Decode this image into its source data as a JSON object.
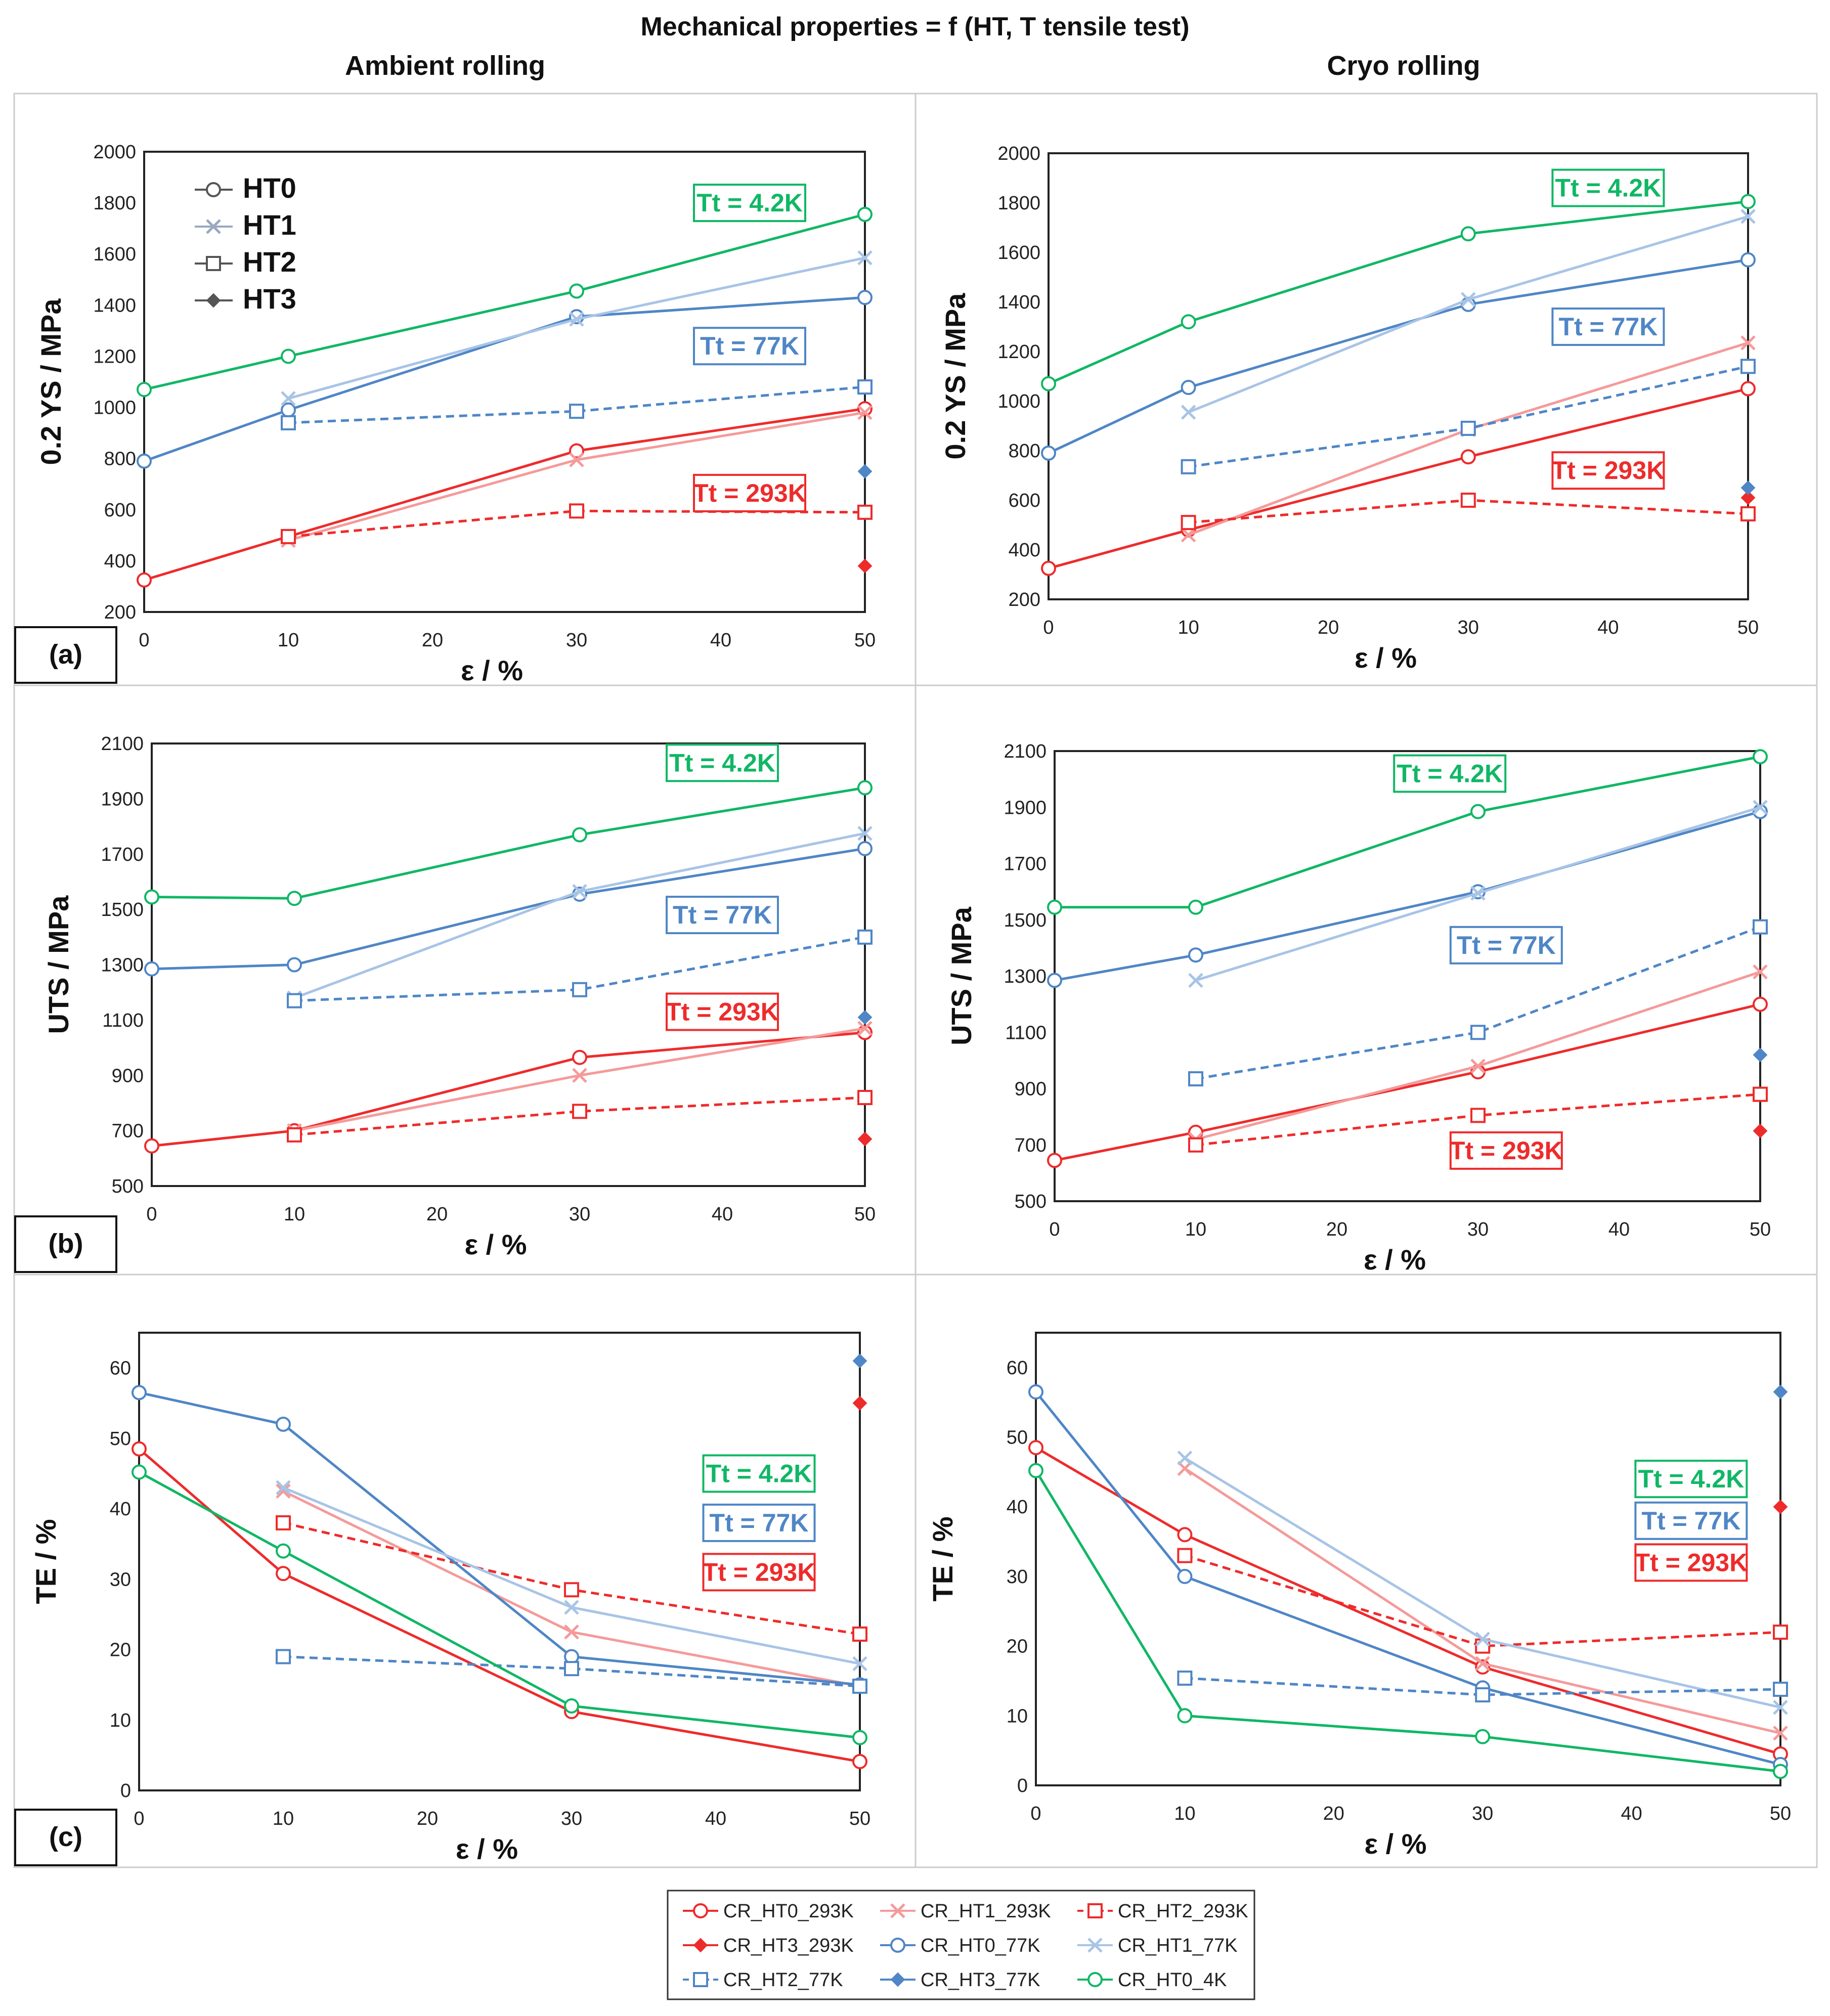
{
  "figure": {
    "title": "Mechanical properties = f (HT, T tensile test)",
    "col_titles": [
      "Ambient rolling",
      "Cryo rolling"
    ],
    "row_labels": [
      "(a)",
      "(b)",
      "(c)"
    ]
  },
  "colors": {
    "red": "#ee2b2b",
    "lightred": "#f59a9a",
    "blue": "#4f86c6",
    "lightblue": "#a8c4e6",
    "green": "#10b765"
  },
  "inset_legend": [
    "HT0",
    "HT1",
    "HT2",
    "HT3"
  ],
  "legend": [
    {
      "name": "CR_HT0_293K",
      "color": "red",
      "dash": false,
      "marker": "circle"
    },
    {
      "name": "CR_HT1_293K",
      "color": "lightred",
      "dash": false,
      "marker": "x"
    },
    {
      "name": "CR_HT2_293K",
      "color": "red",
      "dash": true,
      "marker": "square"
    },
    {
      "name": "CR_HT3_293K",
      "color": "red",
      "dash": false,
      "marker": "diamond"
    },
    {
      "name": "CR_HT0_77K",
      "color": "blue",
      "dash": false,
      "marker": "circle"
    },
    {
      "name": "CR_HT1_77K",
      "color": "lightblue",
      "dash": false,
      "marker": "x"
    },
    {
      "name": "CR_HT2_77K",
      "color": "blue",
      "dash": true,
      "marker": "square"
    },
    {
      "name": "CR_HT3_77K",
      "color": "blue",
      "dash": false,
      "marker": "diamond"
    },
    {
      "name": "CR_HT0_4K",
      "color": "green",
      "dash": false,
      "marker": "circle"
    }
  ],
  "chart_data": [
    {
      "type": "line",
      "panel": "(a) Ambient rolling",
      "xlabel": "ε / %",
      "ylabel": "0.2 YS / MPa",
      "xlim": [
        0,
        50
      ],
      "xticks": [
        0,
        10,
        20,
        30,
        40,
        50
      ],
      "ylim": [
        200,
        2000
      ],
      "yticks": [
        200,
        400,
        600,
        800,
        1000,
        1200,
        1400,
        1600,
        1800,
        2000
      ],
      "has_inset_legend": true,
      "temp_labels": [
        {
          "text": "Tt = 4.2K",
          "color": "green",
          "x": 42,
          "y": 1800
        },
        {
          "text": "Tt = 77K",
          "color": "blue",
          "x": 42,
          "y": 1240
        },
        {
          "text": "Tt = 293K",
          "color": "red",
          "x": 42,
          "y": 665
        }
      ],
      "series": [
        {
          "name": "CR_HT0_293K",
          "x": [
            0,
            10,
            30,
            50
          ],
          "y": [
            325,
            495,
            830,
            995
          ]
        },
        {
          "name": "CR_HT1_293K",
          "x": [
            10,
            30,
            50
          ],
          "y": [
            480,
            795,
            980
          ]
        },
        {
          "name": "CR_HT2_293K",
          "x": [
            10,
            30,
            50
          ],
          "y": [
            495,
            595,
            590
          ]
        },
        {
          "name": "CR_HT3_293K",
          "x": [
            50
          ],
          "y": [
            380
          ]
        },
        {
          "name": "CR_HT0_77K",
          "x": [
            0,
            10,
            30,
            50
          ],
          "y": [
            790,
            990,
            1355,
            1430
          ]
        },
        {
          "name": "CR_HT1_77K",
          "x": [
            10,
            30,
            50
          ],
          "y": [
            1035,
            1345,
            1585
          ]
        },
        {
          "name": "CR_HT2_77K",
          "x": [
            10,
            30,
            50
          ],
          "y": [
            940,
            985,
            1080
          ]
        },
        {
          "name": "CR_HT3_77K",
          "x": [
            50
          ],
          "y": [
            750
          ]
        },
        {
          "name": "CR_HT0_4K",
          "x": [
            0,
            10,
            30,
            50
          ],
          "y": [
            1070,
            1200,
            1455,
            1755
          ]
        }
      ]
    },
    {
      "type": "line",
      "panel": "(a) Cryo rolling",
      "xlabel": "ε / %",
      "ylabel": "0.2 YS / MPa",
      "xlim": [
        0,
        50
      ],
      "xticks": [
        0,
        10,
        20,
        30,
        40,
        50
      ],
      "ylim": [
        200,
        2000
      ],
      "yticks": [
        200,
        400,
        600,
        800,
        1000,
        1200,
        1400,
        1600,
        1800,
        2000
      ],
      "has_inset_legend": false,
      "temp_labels": [
        {
          "text": "Tt = 4.2K",
          "color": "green",
          "x": 40,
          "y": 1860
        },
        {
          "text": "Tt = 77K",
          "color": "blue",
          "x": 40,
          "y": 1300
        },
        {
          "text": "Tt = 293K",
          "color": "red",
          "x": 40,
          "y": 720
        }
      ],
      "series": [
        {
          "name": "CR_HT0_293K",
          "x": [
            0,
            10,
            30,
            50
          ],
          "y": [
            325,
            480,
            775,
            1050
          ]
        },
        {
          "name": "CR_HT1_293K",
          "x": [
            10,
            30,
            50
          ],
          "y": [
            460,
            885,
            1235
          ]
        },
        {
          "name": "CR_HT2_293K",
          "x": [
            10,
            30,
            50
          ],
          "y": [
            510,
            600,
            545
          ]
        },
        {
          "name": "CR_HT3_293K",
          "x": [
            50
          ],
          "y": [
            610
          ]
        },
        {
          "name": "CR_HT0_77K",
          "x": [
            0,
            10,
            30,
            50
          ],
          "y": [
            790,
            1055,
            1390,
            1570
          ]
        },
        {
          "name": "CR_HT1_77K",
          "x": [
            10,
            30,
            50
          ],
          "y": [
            955,
            1410,
            1745
          ]
        },
        {
          "name": "CR_HT2_77K",
          "x": [
            10,
            30,
            50
          ],
          "y": [
            735,
            890,
            1140
          ]
        },
        {
          "name": "CR_HT3_77K",
          "x": [
            50
          ],
          "y": [
            650
          ]
        },
        {
          "name": "CR_HT0_4K",
          "x": [
            0,
            10,
            30,
            50
          ],
          "y": [
            1070,
            1320,
            1675,
            1805
          ]
        }
      ]
    },
    {
      "type": "line",
      "panel": "(b) Ambient rolling",
      "xlabel": "ε / %",
      "ylabel": "UTS / MPa",
      "xlim": [
        0,
        50
      ],
      "xticks": [
        0,
        10,
        20,
        30,
        40,
        50
      ],
      "ylim": [
        500,
        2100
      ],
      "yticks": [
        500,
        700,
        900,
        1100,
        1300,
        1500,
        1700,
        1900,
        2100
      ],
      "has_inset_legend": false,
      "temp_labels": [
        {
          "text": "Tt = 4.2K",
          "color": "green",
          "x": 40,
          "y": 2030
        },
        {
          "text": "Tt = 77K",
          "color": "blue",
          "x": 40,
          "y": 1480
        },
        {
          "text": "Tt = 293K",
          "color": "red",
          "x": 40,
          "y": 1130
        }
      ],
      "series": [
        {
          "name": "CR_HT0_293K",
          "x": [
            0,
            10,
            30,
            50
          ],
          "y": [
            645,
            700,
            965,
            1055
          ]
        },
        {
          "name": "CR_HT1_293K",
          "x": [
            10,
            30,
            50
          ],
          "y": [
            700,
            900,
            1070
          ]
        },
        {
          "name": "CR_HT2_293K",
          "x": [
            10,
            30,
            50
          ],
          "y": [
            685,
            770,
            820
          ]
        },
        {
          "name": "CR_HT3_293K",
          "x": [
            50
          ],
          "y": [
            670
          ]
        },
        {
          "name": "CR_HT0_77K",
          "x": [
            0,
            10,
            30,
            50
          ],
          "y": [
            1285,
            1300,
            1555,
            1720
          ]
        },
        {
          "name": "CR_HT1_77K",
          "x": [
            10,
            30,
            50
          ],
          "y": [
            1180,
            1565,
            1775
          ]
        },
        {
          "name": "CR_HT2_77K",
          "x": [
            10,
            30,
            50
          ],
          "y": [
            1170,
            1210,
            1400
          ]
        },
        {
          "name": "CR_HT3_77K",
          "x": [
            50
          ],
          "y": [
            1110
          ]
        },
        {
          "name": "CR_HT0_4K",
          "x": [
            0,
            10,
            30,
            50
          ],
          "y": [
            1545,
            1540,
            1770,
            1940
          ]
        }
      ]
    },
    {
      "type": "line",
      "panel": "(b) Cryo rolling",
      "xlabel": "ε / %",
      "ylabel": "UTS / MPa",
      "xlim": [
        0,
        50
      ],
      "xticks": [
        0,
        10,
        20,
        30,
        40,
        50
      ],
      "ylim": [
        500,
        2100
      ],
      "yticks": [
        500,
        700,
        900,
        1100,
        1300,
        1500,
        1700,
        1900,
        2100
      ],
      "has_inset_legend": false,
      "temp_labels": [
        {
          "text": "Tt = 4.2K",
          "color": "green",
          "x": 28,
          "y": 2020
        },
        {
          "text": "Tt = 77K",
          "color": "blue",
          "x": 32,
          "y": 1410
        },
        {
          "text": "Tt = 293K",
          "color": "red",
          "x": 32,
          "y": 680
        }
      ],
      "series": [
        {
          "name": "CR_HT0_293K",
          "x": [
            0,
            10,
            30,
            50
          ],
          "y": [
            645,
            745,
            960,
            1200
          ]
        },
        {
          "name": "CR_HT1_293K",
          "x": [
            10,
            30,
            50
          ],
          "y": [
            720,
            980,
            1315
          ]
        },
        {
          "name": "CR_HT2_293K",
          "x": [
            10,
            30,
            50
          ],
          "y": [
            700,
            805,
            880
          ]
        },
        {
          "name": "CR_HT3_293K",
          "x": [
            50
          ],
          "y": [
            750
          ]
        },
        {
          "name": "CR_HT0_77K",
          "x": [
            0,
            10,
            30,
            50
          ],
          "y": [
            1285,
            1375,
            1600,
            1885
          ]
        },
        {
          "name": "CR_HT1_77K",
          "x": [
            10,
            30,
            50
          ],
          "y": [
            1285,
            1595,
            1900
          ]
        },
        {
          "name": "CR_HT2_77K",
          "x": [
            10,
            30,
            50
          ],
          "y": [
            935,
            1100,
            1475
          ]
        },
        {
          "name": "CR_HT3_77K",
          "x": [
            50
          ],
          "y": [
            1020
          ]
        },
        {
          "name": "CR_HT0_4K",
          "x": [
            0,
            10,
            30,
            50
          ],
          "y": [
            1545,
            1545,
            1885,
            2080
          ]
        }
      ]
    },
    {
      "type": "line",
      "panel": "(c) Ambient rolling",
      "xlabel": "ε / %",
      "ylabel": "TE / %",
      "xlim": [
        0,
        50
      ],
      "xticks": [
        0,
        10,
        20,
        30,
        40,
        50
      ],
      "ylim": [
        0,
        65
      ],
      "yticks": [
        0,
        10,
        20,
        30,
        40,
        50,
        60
      ],
      "has_inset_legend": false,
      "temp_labels": [
        {
          "text": "Tt = 4.2K",
          "color": "green",
          "x": 43,
          "y": 45
        },
        {
          "text": "Tt = 77K",
          "color": "blue",
          "x": 43,
          "y": 38
        },
        {
          "text": "Tt = 293K",
          "color": "red",
          "x": 43,
          "y": 31
        }
      ],
      "series": [
        {
          "name": "CR_HT0_293K",
          "x": [
            0,
            10,
            30,
            50
          ],
          "y": [
            48.5,
            30.8,
            11.2,
            4.1
          ]
        },
        {
          "name": "CR_HT1_293K",
          "x": [
            10,
            30,
            50
          ],
          "y": [
            42.5,
            22.5,
            14.8
          ]
        },
        {
          "name": "CR_HT2_293K",
          "x": [
            10,
            30,
            50
          ],
          "y": [
            38,
            28.5,
            22.2
          ]
        },
        {
          "name": "CR_HT3_293K",
          "x": [
            50
          ],
          "y": [
            55
          ]
        },
        {
          "name": "CR_HT0_77K",
          "x": [
            0,
            10,
            30,
            50
          ],
          "y": [
            56.5,
            52,
            19,
            15
          ]
        },
        {
          "name": "CR_HT1_77K",
          "x": [
            10,
            30,
            50
          ],
          "y": [
            43,
            26,
            18
          ]
        },
        {
          "name": "CR_HT2_77K",
          "x": [
            10,
            30,
            50
          ],
          "y": [
            19,
            17.3,
            14.8
          ]
        },
        {
          "name": "CR_HT3_77K",
          "x": [
            50
          ],
          "y": [
            61
          ]
        },
        {
          "name": "CR_HT0_4K",
          "x": [
            0,
            10,
            30,
            50
          ],
          "y": [
            45.2,
            34,
            12,
            7.5
          ]
        }
      ]
    },
    {
      "type": "line",
      "panel": "(c) Cryo rolling",
      "xlabel": "ε / %",
      "ylabel": "TE / %",
      "xlim": [
        0,
        50
      ],
      "xticks": [
        0,
        10,
        20,
        30,
        40,
        50
      ],
      "ylim": [
        0,
        65
      ],
      "yticks": [
        0,
        10,
        20,
        30,
        40,
        50,
        60
      ],
      "has_inset_legend": false,
      "temp_labels": [
        {
          "text": "Tt = 4.2K",
          "color": "green",
          "x": 44,
          "y": 44
        },
        {
          "text": "Tt = 77K",
          "color": "blue",
          "x": 44,
          "y": 38
        },
        {
          "text": "Tt = 293K",
          "color": "red",
          "x": 44,
          "y": 32
        }
      ],
      "series": [
        {
          "name": "CR_HT0_293K",
          "x": [
            0,
            10,
            30,
            50
          ],
          "y": [
            48.5,
            36,
            17,
            4.5
          ]
        },
        {
          "name": "CR_HT1_293K",
          "x": [
            10,
            30,
            50
          ],
          "y": [
            45.5,
            17.5,
            7.5
          ]
        },
        {
          "name": "CR_HT2_293K",
          "x": [
            10,
            30,
            50
          ],
          "y": [
            33,
            20,
            22
          ]
        },
        {
          "name": "CR_HT3_293K",
          "x": [
            50
          ],
          "y": [
            40
          ]
        },
        {
          "name": "CR_HT0_77K",
          "x": [
            0,
            10,
            30,
            50
          ],
          "y": [
            56.5,
            30,
            14,
            3
          ]
        },
        {
          "name": "CR_HT1_77K",
          "x": [
            10,
            30,
            50
          ],
          "y": [
            47,
            21,
            11.2
          ]
        },
        {
          "name": "CR_HT2_77K",
          "x": [
            10,
            30,
            50
          ],
          "y": [
            15.4,
            13,
            13.8
          ]
        },
        {
          "name": "CR_HT3_77K",
          "x": [
            50
          ],
          "y": [
            56.5
          ]
        },
        {
          "name": "CR_HT0_4K",
          "x": [
            0,
            10,
            30,
            50
          ],
          "y": [
            45.2,
            10,
            7,
            2
          ]
        }
      ]
    }
  ]
}
